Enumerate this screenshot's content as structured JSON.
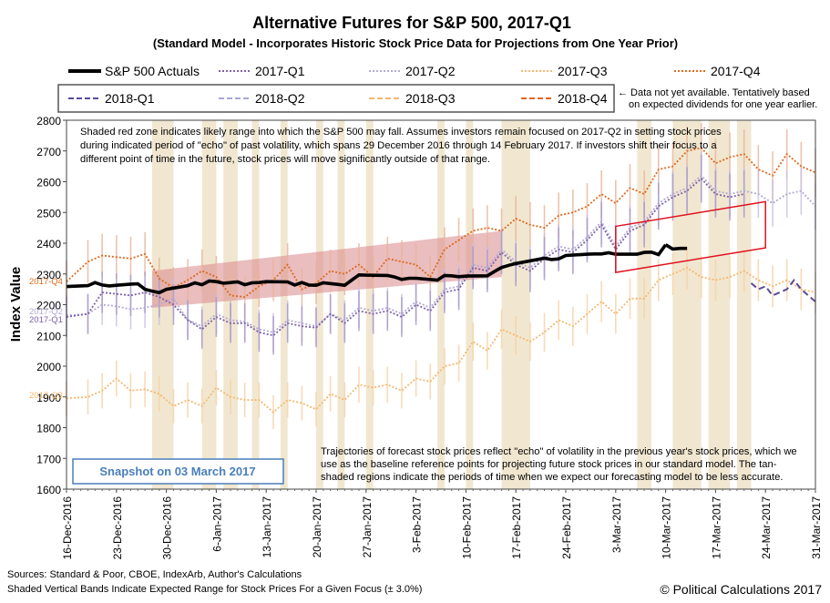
{
  "chart_data": {
    "type": "line",
    "title": "Alternative Futures for S&P 500, 2017-Q1",
    "subtitle": "(Standard Model - Incorporates Historic Stock Price Data for Projections from One Year Prior)",
    "ylabel": "Index Value",
    "xlabel": "",
    "ylim": [
      1600,
      2800
    ],
    "yticks": [
      1600,
      1700,
      1800,
      1900,
      2000,
      2100,
      2200,
      2300,
      2400,
      2500,
      2600,
      2700,
      2800
    ],
    "xticks": [
      "16-Dec-2016",
      "23-Dec-2016",
      "30-Dec-2016",
      "6-Jan-2017",
      "13-Jan-2017",
      "20-Jan-2017",
      "27-Jan-2017",
      "3-Feb-2017",
      "10-Feb-2017",
      "17-Feb-2017",
      "24-Feb-2017",
      "3-Mar-2017",
      "10-Mar-2017",
      "17-Mar-2017",
      "24-Mar-2017",
      "31-Mar-2017"
    ],
    "x_day_range": [
      0,
      105
    ],
    "legend": [
      {
        "name": "S&P 500 Actuals",
        "color": "#000000",
        "style": "solid"
      },
      {
        "name": "2017-Q1",
        "color": "#7e62a8",
        "style": "dotted"
      },
      {
        "name": "2017-Q2",
        "color": "#b4aad4",
        "style": "dotted"
      },
      {
        "name": "2017-Q3",
        "color": "#f5b870",
        "style": "dotted"
      },
      {
        "name": "2017-Q4",
        "color": "#dc6a1e",
        "style": "dotted"
      },
      {
        "name": "2018-Q1",
        "color": "#5a4a9a",
        "style": "dashed"
      },
      {
        "name": "2018-Q2",
        "color": "#a8a8d8",
        "style": "dashed"
      },
      {
        "name": "2018-Q3",
        "color": "#f5b870",
        "style": "dashed"
      },
      {
        "name": "2018-Q4",
        "color": "#e6641e",
        "style": "dashed"
      }
    ],
    "legend_note": [
      "← Data not yet available. Tentatively based",
      "on expected dividends for one year earlier."
    ],
    "series_labels": {
      "q4": "2017-Q4",
      "q2": "2017-Q2",
      "q1": "2017-Q1",
      "q3": "2017-Q3"
    },
    "actuals": {
      "name": "S&P 500 Actuals",
      "x": [
        0,
        3,
        4,
        5,
        6,
        7,
        8,
        9,
        10,
        11,
        12,
        13,
        14,
        17,
        18,
        19,
        20,
        21,
        22,
        24,
        25,
        26,
        27,
        28,
        31,
        32,
        33,
        34,
        35,
        36,
        38,
        39,
        40,
        41,
        42,
        45,
        46,
        47,
        48,
        49,
        52,
        53,
        54,
        55,
        56,
        59,
        60,
        61,
        62,
        63,
        67,
        68,
        69,
        70,
        73,
        74,
        75,
        76,
        77,
        80,
        81,
        82,
        83,
        84
      ],
      "y": [
        2259,
        2262,
        2272,
        2264,
        2261,
        2263,
        2265,
        2267,
        2268,
        2250,
        2244,
        2239,
        2250,
        2262,
        2271,
        2265,
        2277,
        2275,
        2270,
        2274,
        2265,
        2271,
        2272,
        2275,
        2274,
        2264,
        2272,
        2264,
        2263,
        2271,
        2266,
        2263,
        2280,
        2297,
        2296,
        2295,
        2290,
        2282,
        2286,
        2286,
        2280,
        2295,
        2294,
        2291,
        2293,
        2294,
        2308,
        2321,
        2328,
        2334,
        2351,
        2347,
        2349,
        2360,
        2364,
        2365,
        2365,
        2369,
        2364,
        2364,
        2370,
        2371,
        2363,
        2395
      ]
    },
    "actuals_tail": {
      "x": [
        84,
        85,
        86,
        87
      ],
      "y": [
        2395,
        2381,
        2383,
        2383
      ]
    },
    "q4": {
      "name": "2017-Q4",
      "x": [
        0,
        3,
        5,
        7,
        9,
        11,
        13,
        15,
        17,
        19,
        21,
        23,
        25,
        27,
        29,
        31,
        33,
        35,
        37,
        39,
        41,
        43,
        45,
        47,
        49,
        51,
        53,
        55,
        57,
        59,
        61,
        63,
        65,
        67,
        69,
        71,
        73,
        75,
        77,
        79,
        81,
        83,
        85,
        87,
        89,
        91,
        93,
        95,
        97,
        99,
        101,
        103,
        105
      ],
      "y": [
        2275,
        2340,
        2360,
        2355,
        2350,
        2365,
        2285,
        2255,
        2280,
        2310,
        2290,
        2230,
        2225,
        2260,
        2280,
        2330,
        2250,
        2270,
        2310,
        2300,
        2330,
        2290,
        2350,
        2340,
        2330,
        2290,
        2380,
        2410,
        2440,
        2450,
        2440,
        2480,
        2460,
        2450,
        2490,
        2500,
        2520,
        2560,
        2530,
        2580,
        2560,
        2640,
        2650,
        2700,
        2710,
        2660,
        2680,
        2690,
        2640,
        2620,
        2690,
        2650,
        2630
      ]
    },
    "q2": {
      "name": "2017-Q2",
      "x": [
        0,
        3,
        5,
        7,
        9,
        11,
        13,
        15,
        17,
        19,
        21,
        23,
        25,
        27,
        29,
        31,
        33,
        35,
        37,
        39,
        41,
        43,
        45,
        47,
        49,
        51,
        53,
        55,
        57,
        59,
        61,
        63,
        65,
        67,
        69,
        71,
        73,
        75,
        77,
        79,
        81,
        83,
        85,
        87,
        89,
        91,
        93,
        95,
        97,
        99,
        101,
        103,
        105
      ],
      "y": [
        2165,
        2170,
        2200,
        2195,
        2185,
        2190,
        2200,
        2220,
        2150,
        2130,
        2170,
        2150,
        2145,
        2120,
        2110,
        2150,
        2140,
        2130,
        2170,
        2150,
        2190,
        2180,
        2190,
        2170,
        2210,
        2190,
        2250,
        2260,
        2330,
        2320,
        2380,
        2340,
        2320,
        2360,
        2390,
        2380,
        2420,
        2470,
        2390,
        2450,
        2470,
        2530,
        2560,
        2580,
        2620,
        2570,
        2560,
        2570,
        2560,
        2530,
        2560,
        2570,
        2520
      ]
    },
    "q1": {
      "name": "2017-Q1",
      "x": [
        0,
        3,
        5,
        7,
        9,
        11,
        13,
        15,
        17,
        19,
        21,
        23,
        25,
        27,
        29,
        31,
        33,
        35,
        37,
        39,
        41,
        43,
        45,
        47,
        49,
        51,
        53,
        55,
        57,
        59,
        61,
        63,
        65,
        67,
        69,
        71,
        73,
        75,
        77,
        79,
        81,
        83,
        85,
        87,
        89,
        91,
        93,
        95
      ],
      "y": [
        2160,
        2170,
        2240,
        2235,
        2230,
        2240,
        2225,
        2200,
        2150,
        2120,
        2160,
        2140,
        2140,
        2110,
        2100,
        2140,
        2130,
        2125,
        2170,
        2140,
        2180,
        2170,
        2180,
        2160,
        2200,
        2180,
        2240,
        2250,
        2320,
        2310,
        2370,
        2330,
        2310,
        2350,
        2380,
        2370,
        2410,
        2460,
        2380,
        2440,
        2460,
        2520,
        2550,
        2570,
        2610,
        2560,
        2550,
        2560
      ]
    },
    "q3": {
      "name": "2017-Q3",
      "x": [
        0,
        3,
        5,
        7,
        9,
        11,
        13,
        15,
        17,
        19,
        21,
        23,
        25,
        27,
        29,
        31,
        33,
        35,
        37,
        39,
        41,
        43,
        45,
        47,
        49,
        51,
        53,
        55,
        57,
        59,
        61,
        63,
        65,
        67,
        69,
        71,
        73,
        75,
        77,
        79,
        81,
        83,
        85,
        87,
        89,
        91,
        93,
        95,
        97,
        99,
        101,
        103,
        105
      ],
      "y": [
        1895,
        1900,
        1920,
        1960,
        1920,
        1925,
        1910,
        1870,
        1890,
        1870,
        1930,
        1900,
        1890,
        1890,
        1850,
        1890,
        1880,
        1860,
        1910,
        1890,
        1940,
        1930,
        1940,
        1920,
        1960,
        1950,
        2000,
        2010,
        2080,
        2050,
        2120,
        2100,
        2080,
        2110,
        2150,
        2130,
        2170,
        2210,
        2170,
        2220,
        2220,
        2280,
        2300,
        2320,
        2290,
        2280,
        2290,
        2310,
        2280,
        2260,
        2280,
        2250,
        2240
      ]
    },
    "y2018q1": {
      "name": "2018-Q1",
      "x": [
        96,
        97,
        98,
        99,
        100,
        101,
        102,
        103,
        104,
        105
      ],
      "y": [
        2270,
        2250,
        2260,
        2230,
        2240,
        2250,
        2280,
        2250,
        2230,
        2210
      ]
    },
    "band_days": [
      [
        12,
        15
      ],
      [
        19,
        21
      ],
      [
        22,
        24
      ],
      [
        26,
        27
      ],
      [
        30,
        31
      ],
      [
        35,
        36
      ],
      [
        38,
        39
      ],
      [
        42,
        43
      ],
      [
        52,
        53
      ],
      [
        56,
        57
      ],
      [
        61,
        65
      ],
      [
        80,
        82
      ],
      [
        85,
        89
      ],
      [
        90,
        93
      ],
      [
        94,
        96
      ]
    ],
    "range_zone": {
      "x": [
        12,
        61
      ],
      "upper": [
        2310,
        2440
      ],
      "lower": [
        2190,
        2290
      ]
    },
    "forecast_box": {
      "x": [
        77,
        98
      ],
      "upper": [
        2455,
        2535
      ],
      "lower": [
        2305,
        2385
      ]
    },
    "notes": {
      "top": [
        "Shaded red zone indicates likely range into which the S&P 500 may fall.  Assumes investors remain focused on 2017-Q2 in setting  stock prices",
        "during indicated period of \"echo\" of past volatility, which spans 29 December 2016 through 14 February 2017.  If investors shift their focus to a",
        "different point of time in the future, stock prices will move significantly outside of that range."
      ],
      "bottom": [
        "Trajectories of forecast stock prices reflect \"echo\" of volatility in  the previous year's stock prices, which we",
        "use as the baseline reference points for projecting future stock prices in our standard model.  The tan-",
        "shaded regions indicate the periods of time when we expect our forecasting model to be less accurate."
      ]
    },
    "snapshot": "Snapshot on 03 March 2017",
    "sources": "Sources: Standard & Poor, CBOE, IndexArb, Author's Calculations",
    "bands_note": "Shaded Vertical Bands Indicate Expected Range for Stock Prices For a Given Focus (± 3.0%)",
    "copyright": "© Political Calculations 2017"
  }
}
